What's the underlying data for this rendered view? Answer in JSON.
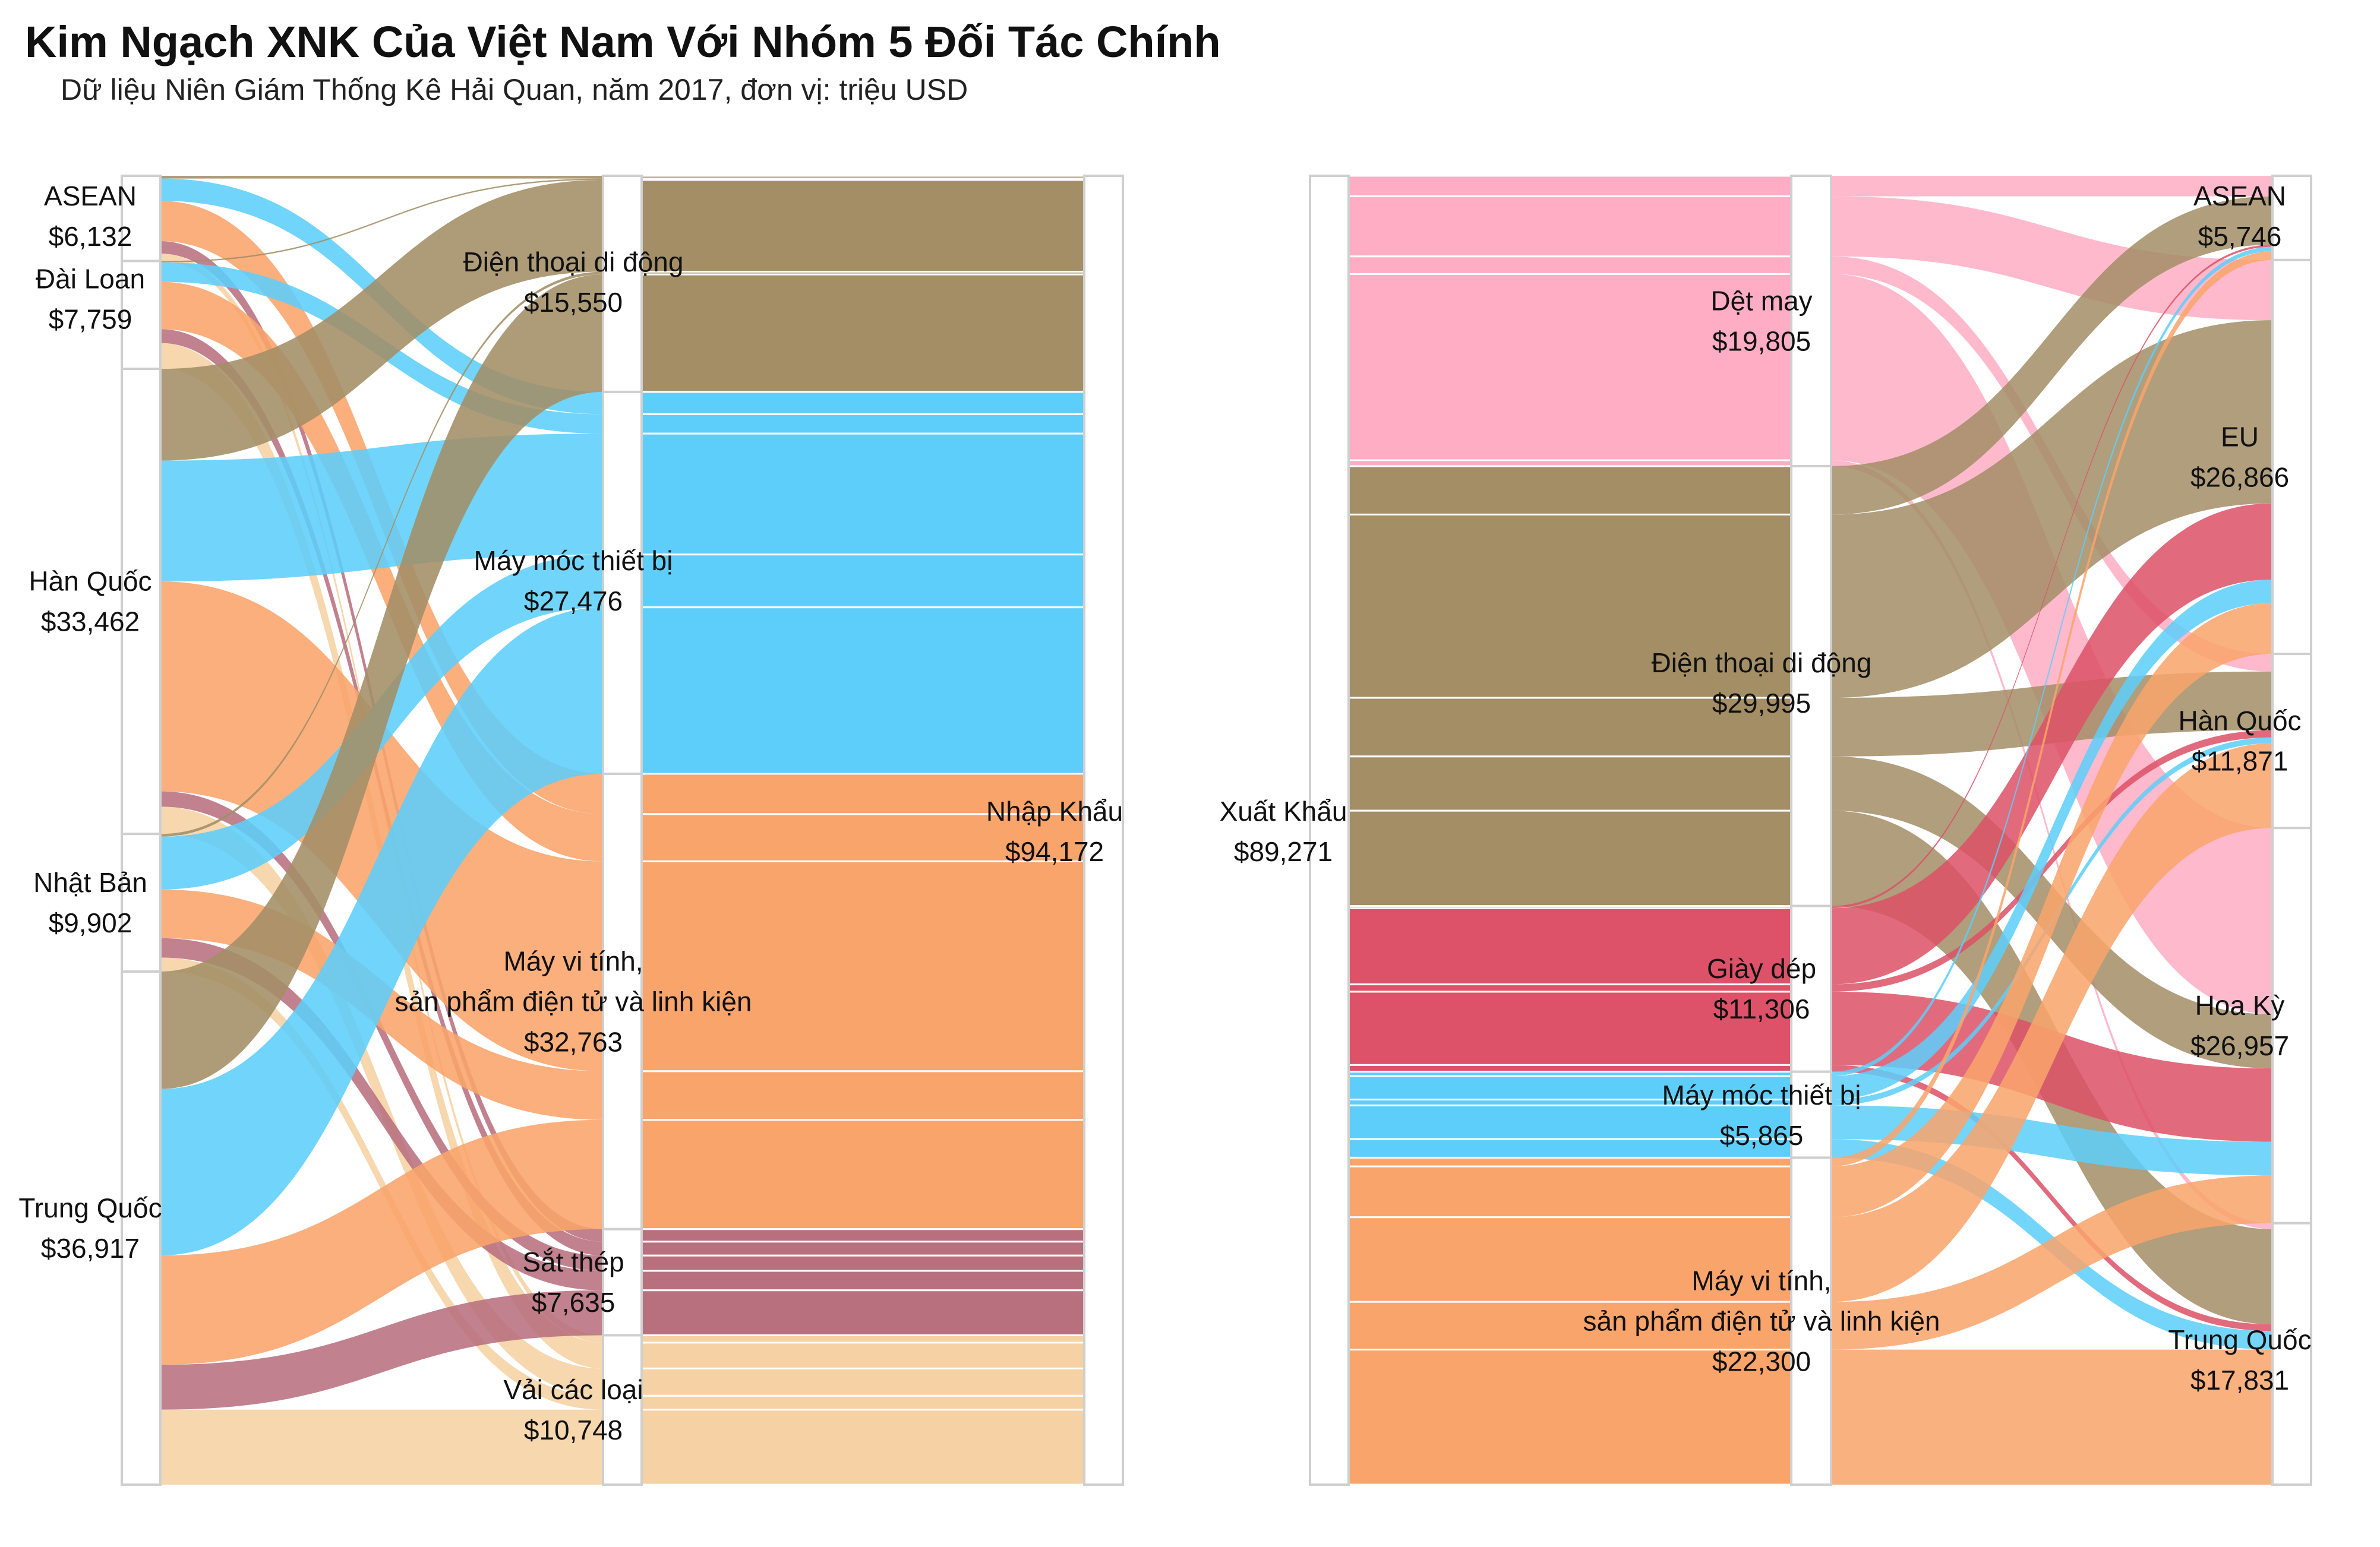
{
  "title": "Kim Ngạch XNK Của Việt Nam Với Nhóm 5 Đối Tác Chính",
  "subtitle": "Dữ liệu Niên Giám Thống Kê Hải Quan, năm 2017, đơn vị: triệu USD",
  "colors": {
    "phone": "#a38e66",
    "machinery": "#5dcefa",
    "computers": "#f9a46b",
    "steel": "#b8707e",
    "fabric": "#f5d1a3",
    "textile": "#ffadc4",
    "footwear": "#dd5268"
  },
  "chart_data": [
    {
      "type": "sankey",
      "name": "import",
      "sources": [
        {
          "name": "ASEAN",
          "value_label": "$6,132"
        },
        {
          "name": "Đài Loan",
          "value_label": "$7,759"
        },
        {
          "name": "Hàn Quốc",
          "value_label": "$33,462"
        },
        {
          "name": "Nhật Bản",
          "value_label": "$9,902"
        },
        {
          "name": "Trung Quốc",
          "value_label": "$36,917"
        }
      ],
      "products": [
        {
          "name": "Điện thoại di động",
          "value_label": "$15,550",
          "color": "phone"
        },
        {
          "name": "Máy móc thiết bị",
          "value_label": "$27,476",
          "color": "machinery"
        },
        {
          "name": "Máy vi tính, sản phẩm điện tử và linh kiện",
          "label_lines": [
            "Máy vi tính,",
            "sản phẩm điện tử và linh kiện"
          ],
          "value_label": "$32,763",
          "color": "computers"
        },
        {
          "name": "Sắt thép",
          "value_label": "$7,635",
          "color": "steel"
        },
        {
          "name": "Vải các loại",
          "value_label": "$10,748",
          "color": "fabric"
        }
      ],
      "total": {
        "name": "Nhập Khẩu",
        "value_label": "$94,172"
      },
      "flows": [
        {
          "source": "ASEAN",
          "product": "Điện thoại di động",
          "value": 200
        },
        {
          "source": "ASEAN",
          "product": "Máy móc thiết bị",
          "value": 1600
        },
        {
          "source": "ASEAN",
          "product": "Máy vi tính, sản phẩm điện tử và linh kiện",
          "value": 2900
        },
        {
          "source": "ASEAN",
          "product": "Sắt thép",
          "value": 900
        },
        {
          "source": "ASEAN",
          "product": "Vải các loại",
          "value": 532
        },
        {
          "source": "Đài Loan",
          "product": "Điện thoại di động",
          "value": 100
        },
        {
          "source": "Đài Loan",
          "product": "Máy móc thiết bị",
          "value": 1400
        },
        {
          "source": "Đài Loan",
          "product": "Máy vi tính, sản phẩm điện tử và linh kiện",
          "value": 3400
        },
        {
          "source": "Đài Loan",
          "product": "Sắt thép",
          "value": 1000
        },
        {
          "source": "Đài Loan",
          "product": "Vải các loại",
          "value": 1859
        },
        {
          "source": "Hàn Quốc",
          "product": "Điện thoại di động",
          "value": 6600
        },
        {
          "source": "Hàn Quốc",
          "product": "Máy móc thiết bị",
          "value": 8700
        },
        {
          "source": "Hàn Quốc",
          "product": "Máy vi tính, sản phẩm điện tử và linh kiện",
          "value": 15100
        },
        {
          "source": "Hàn Quốc",
          "product": "Sắt thép",
          "value": 1100
        },
        {
          "source": "Hàn Quốc",
          "product": "Vải các loại",
          "value": 1962
        },
        {
          "source": "Nhật Bản",
          "product": "Điện thoại di động",
          "value": 200
        },
        {
          "source": "Nhật Bản",
          "product": "Máy móc thiết bị",
          "value": 3800
        },
        {
          "source": "Nhật Bản",
          "product": "Máy vi tính, sản phẩm điện tử và linh kiện",
          "value": 3500
        },
        {
          "source": "Nhật Bản",
          "product": "Sắt thép",
          "value": 1400
        },
        {
          "source": "Nhật Bản",
          "product": "Vải các loại",
          "value": 1002
        },
        {
          "source": "Trung Quốc",
          "product": "Điện thoại di động",
          "value": 8450
        },
        {
          "source": "Trung Quốc",
          "product": "Máy móc thiết bị",
          "value": 11976
        },
        {
          "source": "Trung Quốc",
          "product": "Máy vi tính, sản phẩm điện tử và linh kiện",
          "value": 7863
        },
        {
          "source": "Trung Quốc",
          "product": "Sắt thép",
          "value": 3235
        },
        {
          "source": "Trung Quốc",
          "product": "Vải các loại",
          "value": 5393
        }
      ]
    },
    {
      "type": "sankey",
      "name": "export",
      "total": {
        "name": "Xuất Khẩu",
        "value_label": "$89,271"
      },
      "products": [
        {
          "name": "Dệt may",
          "value_label": "$19,805",
          "color": "textile"
        },
        {
          "name": "Điện thoại di động",
          "value_label": "$29,995",
          "color": "phone"
        },
        {
          "name": "Giày dép",
          "value_label": "$11,306",
          "color": "footwear"
        },
        {
          "name": "Máy móc thiết bị",
          "value_label": "$5,865",
          "color": "machinery"
        },
        {
          "name": "Máy vi tính, sản phẩm điện tử và linh kiện",
          "label_lines": [
            "Máy vi tính,",
            "sản phẩm điện tử và linh kiện"
          ],
          "value_label": "$22,300",
          "color": "computers"
        }
      ],
      "targets": [
        {
          "name": "ASEAN",
          "value_label": "$5,746"
        },
        {
          "name": "EU",
          "value_label": "$26,866"
        },
        {
          "name": "Hàn Quốc",
          "value_label": "$11,871"
        },
        {
          "name": "Hoa Kỳ",
          "value_label": "$26,957"
        },
        {
          "name": "Trung Quốc",
          "value_label": "$17,831"
        }
      ],
      "flows": [
        {
          "product": "Dệt may",
          "target": "ASEAN",
          "value": 1400
        },
        {
          "product": "Dệt may",
          "target": "EU",
          "value": 4100
        },
        {
          "product": "Dệt may",
          "target": "Hàn Quốc",
          "value": 1200
        },
        {
          "product": "Dệt may",
          "target": "Hoa Kỳ",
          "value": 12700
        },
        {
          "product": "Dệt may",
          "target": "Trung Quốc",
          "value": 405
        },
        {
          "product": "Điện thoại di động",
          "target": "ASEAN",
          "value": 3300
        },
        {
          "product": "Điện thoại di động",
          "target": "EU",
          "value": 12500
        },
        {
          "product": "Điện thoại di động",
          "target": "Hàn Quốc",
          "value": 4000
        },
        {
          "product": "Điện thoại di động",
          "target": "Hoa Kỳ",
          "value": 3700
        },
        {
          "product": "Điện thoại di động",
          "target": "Trung Quốc",
          "value": 6495
        },
        {
          "product": "Giày dép",
          "target": "ASEAN",
          "value": 150
        },
        {
          "product": "Giày dép",
          "target": "EU",
          "value": 5200
        },
        {
          "product": "Giày dép",
          "target": "Hàn Quốc",
          "value": 500
        },
        {
          "product": "Giày dép",
          "target": "Hoa Kỳ",
          "value": 5000
        },
        {
          "product": "Giày dép",
          "target": "Trung Quốc",
          "value": 456
        },
        {
          "product": "Máy móc thiết bị",
          "target": "ASEAN",
          "value": 300
        },
        {
          "product": "Máy móc thiết bị",
          "target": "EU",
          "value": 1600
        },
        {
          "product": "Máy móc thiết bị",
          "target": "Hàn Quốc",
          "value": 400
        },
        {
          "product": "Máy móc thiết bị",
          "target": "Hoa Kỳ",
          "value": 2300
        },
        {
          "product": "Máy móc thiết bị",
          "target": "Trung Quốc",
          "value": 1265
        },
        {
          "product": "Máy vi tính, sản phẩm điện tử và linh kiện",
          "target": "ASEAN",
          "value": 596
        },
        {
          "product": "Máy vi tính, sản phẩm điện tử và linh kiện",
          "target": "EU",
          "value": 3466
        },
        {
          "product": "Máy vi tính, sản phẩm điện tử và linh kiện",
          "target": "Hàn Quốc",
          "value": 5771
        },
        {
          "product": "Máy vi tính, sản phẩm điện tử và linh kiện",
          "target": "Hoa Kỳ",
          "value": 3257
        },
        {
          "product": "Máy vi tính, sản phẩm điện tử và linh kiện",
          "target": "Trung Quốc",
          "value": 9210
        }
      ]
    }
  ]
}
